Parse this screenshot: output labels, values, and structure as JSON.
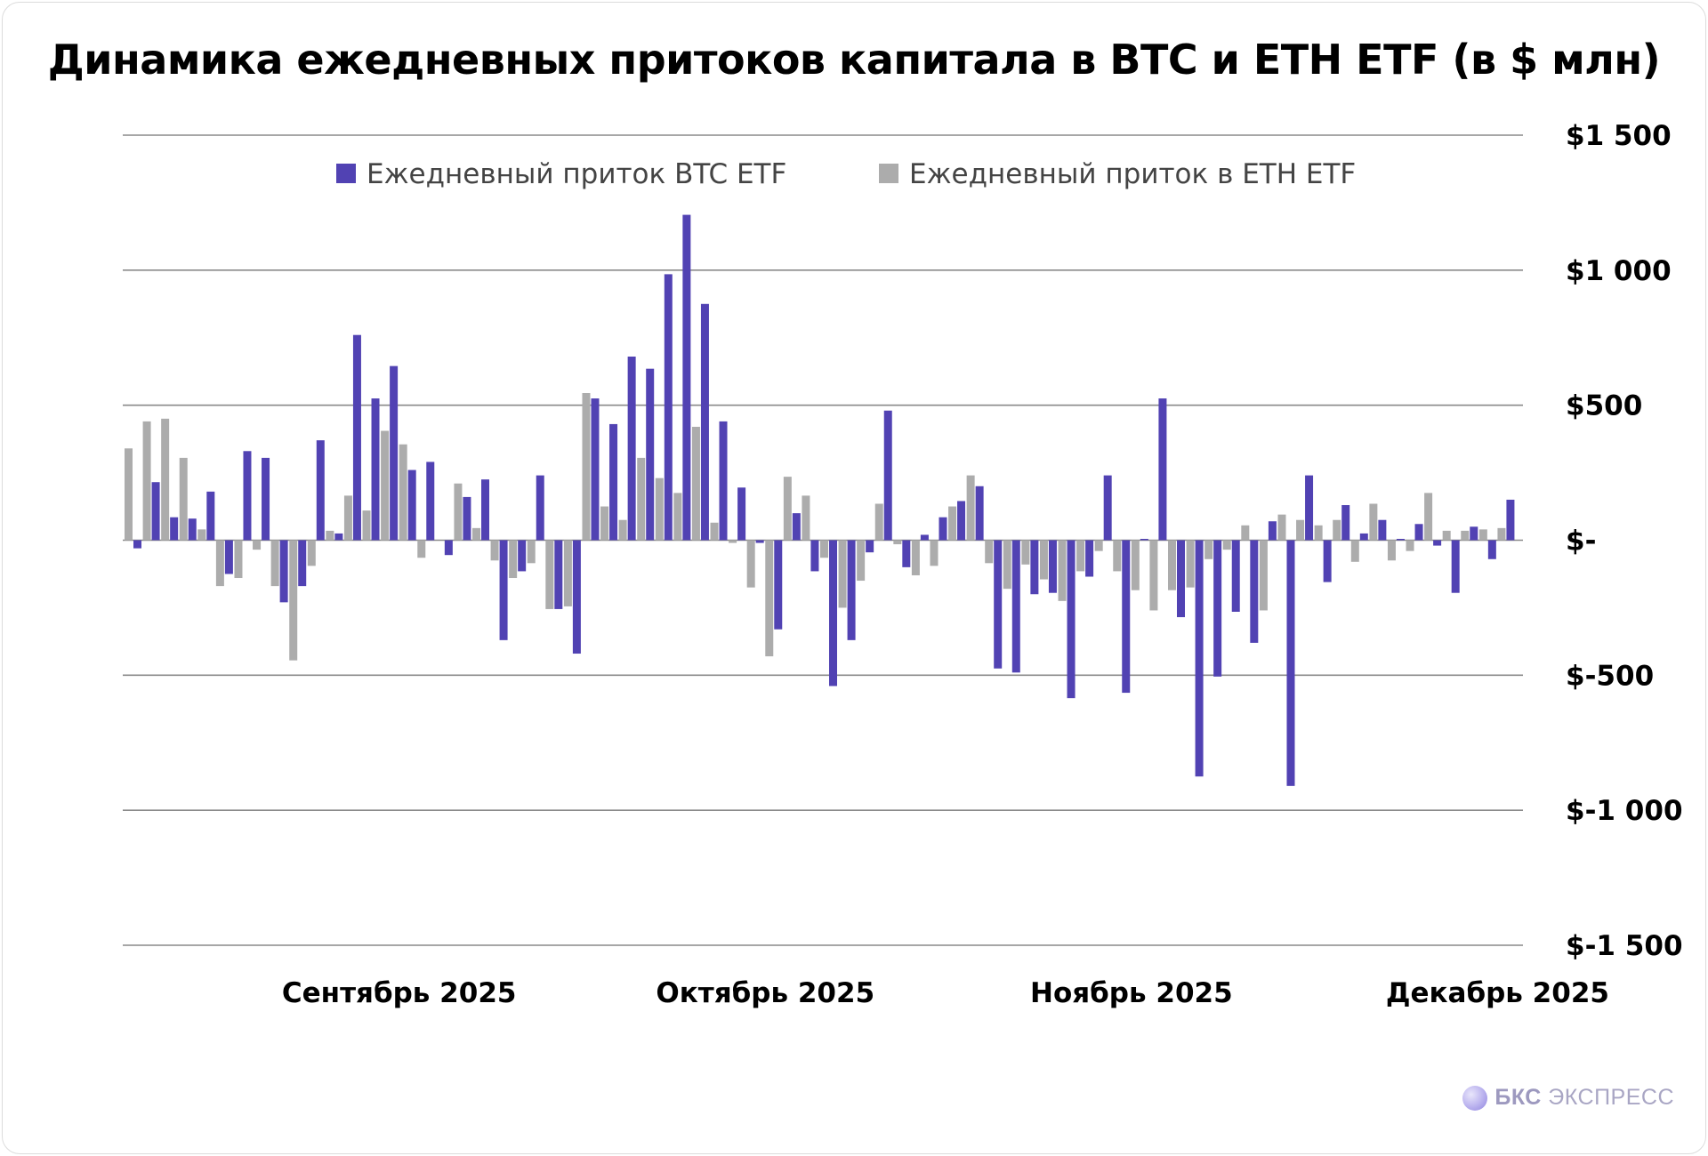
{
  "chart_data": {
    "type": "bar",
    "title": "Динамика ежедневных притоков капитала в BTC и ETH ETF (в $ млн)",
    "ylim": [
      -1500,
      1500
    ],
    "yticks": [
      1500,
      1000,
      500,
      0,
      -500,
      -1000,
      -1500
    ],
    "ytick_labels": [
      "$1 500",
      "$1 000",
      "$500",
      "$-",
      "$-500",
      "$-1 000",
      "$-1 500"
    ],
    "x_tick_labels": [
      {
        "label": "Сентябрь 2025",
        "index": 15
      },
      {
        "label": "Октябрь 2025",
        "index": 35
      },
      {
        "label": "Ноябрь 2025",
        "index": 55
      },
      {
        "label": "Декабрь 2025",
        "index": 75
      }
    ],
    "legend_position": "top-center",
    "colors": {
      "btc": "#5142b3",
      "eth": "#acacac"
    },
    "series": [
      {
        "name": "Ежедневный приток BTC ETF",
        "values": [
          -30,
          215,
          85,
          80,
          180,
          -125,
          330,
          305,
          -230,
          -170,
          370,
          25,
          760,
          525,
          645,
          260,
          290,
          -55,
          160,
          225,
          -370,
          -115,
          240,
          -255,
          -420,
          525,
          430,
          680,
          635,
          985,
          1205,
          875,
          440,
          195,
          -10,
          -330,
          100,
          -115,
          -540,
          -370,
          -45,
          480,
          -100,
          20,
          85,
          145,
          200,
          -475,
          -490,
          -200,
          -195,
          -585,
          -135,
          240,
          -565,
          5,
          525,
          -285,
          -875,
          -505,
          -265,
          -380,
          70,
          -910,
          240,
          -155,
          130,
          25,
          75,
          5,
          60,
          -20,
          -195,
          50,
          -70,
          150
        ]
      },
      {
        "name": "Ежедневный приток в ETH ETF",
        "values": [
          340,
          440,
          450,
          305,
          40,
          -170,
          -140,
          -35,
          -170,
          -445,
          -95,
          35,
          165,
          110,
          405,
          355,
          -65,
          0,
          210,
          45,
          -75,
          -140,
          -85,
          -255,
          -245,
          545,
          125,
          75,
          305,
          230,
          175,
          420,
          65,
          -10,
          -175,
          -430,
          235,
          165,
          -65,
          -250,
          -150,
          135,
          -15,
          -130,
          -95,
          125,
          240,
          -85,
          -180,
          -90,
          -145,
          -225,
          -115,
          -40,
          -115,
          -185,
          -260,
          -185,
          -175,
          -70,
          -35,
          55,
          -260,
          95,
          75,
          55,
          75,
          -80,
          135,
          -75,
          -40,
          175,
          35,
          35,
          40,
          45
        ]
      }
    ]
  },
  "logo": {
    "brand": "БКС",
    "product": "ЭКСПРЕСС"
  }
}
